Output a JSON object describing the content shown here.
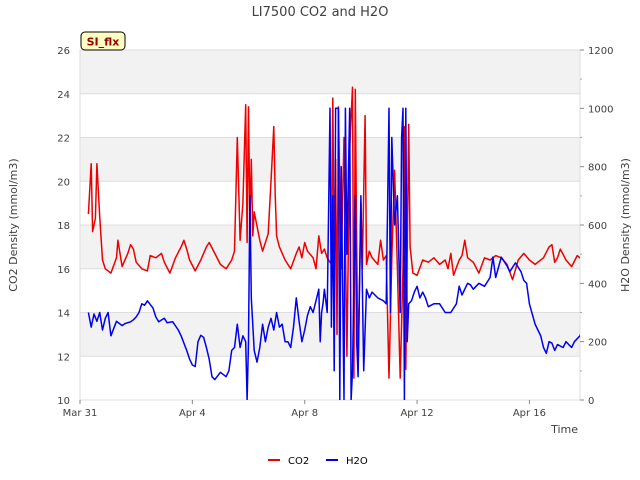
{
  "chart_data": {
    "type": "line",
    "title": "LI7500 CO2 and H2O",
    "xlabel": "Time",
    "ylabel_left": "CO2 Density (mmol/m3)",
    "ylabel_right": "H2O Density (mmol/m3)",
    "xlim": [
      0,
      17.8
    ],
    "ylim_left": [
      10,
      26
    ],
    "ylim_right": [
      0,
      1200
    ],
    "x_unit": "days since Mar 31",
    "x_ticks": [
      {
        "value": 0,
        "label": "Mar 31"
      },
      {
        "value": 4,
        "label": "Apr 4"
      },
      {
        "value": 8,
        "label": "Apr 8"
      },
      {
        "value": 12,
        "label": "Apr 12"
      },
      {
        "value": 16,
        "label": "Apr 16"
      }
    ],
    "y_ticks_left": [
      10,
      12,
      14,
      16,
      18,
      20,
      22,
      24,
      26
    ],
    "y_ticks_right": [
      0,
      200,
      400,
      600,
      800,
      1000,
      1200
    ],
    "grid": "horizontal bands",
    "legend_position": "bottom-center",
    "annotation": "SI_flx",
    "series": [
      {
        "name": "CO2",
        "color": "#ee0000",
        "axis": "left",
        "points": [
          [
            0.3,
            18.5
          ],
          [
            0.4,
            20.8
          ],
          [
            0.45,
            17.7
          ],
          [
            0.55,
            18.3
          ],
          [
            0.6,
            20.8
          ],
          [
            0.7,
            18.4
          ],
          [
            0.8,
            16.4
          ],
          [
            0.9,
            16.0
          ],
          [
            1.1,
            15.8
          ],
          [
            1.3,
            16.5
          ],
          [
            1.35,
            17.3
          ],
          [
            1.5,
            16.1
          ],
          [
            1.7,
            16.7
          ],
          [
            1.8,
            17.1
          ],
          [
            1.9,
            16.9
          ],
          [
            2.0,
            16.3
          ],
          [
            2.2,
            16.0
          ],
          [
            2.4,
            15.9
          ],
          [
            2.5,
            16.6
          ],
          [
            2.7,
            16.5
          ],
          [
            2.9,
            16.7
          ],
          [
            3.0,
            16.3
          ],
          [
            3.2,
            15.8
          ],
          [
            3.4,
            16.5
          ],
          [
            3.6,
            17.0
          ],
          [
            3.7,
            17.3
          ],
          [
            3.8,
            16.9
          ],
          [
            3.9,
            16.4
          ],
          [
            4.1,
            15.9
          ],
          [
            4.3,
            16.4
          ],
          [
            4.5,
            17.0
          ],
          [
            4.6,
            17.2
          ],
          [
            4.8,
            16.7
          ],
          [
            5.0,
            16.2
          ],
          [
            5.2,
            16.0
          ],
          [
            5.4,
            16.4
          ],
          [
            5.5,
            16.8
          ],
          [
            5.6,
            22.0
          ],
          [
            5.7,
            17.3
          ],
          [
            5.8,
            19.0
          ],
          [
            5.9,
            23.5
          ],
          [
            5.95,
            17.2
          ],
          [
            6.0,
            23.4
          ],
          [
            6.05,
            18.0
          ],
          [
            6.1,
            21.0
          ],
          [
            6.15,
            17.5
          ],
          [
            6.2,
            18.6
          ],
          [
            6.4,
            17.3
          ],
          [
            6.5,
            16.8
          ],
          [
            6.7,
            17.6
          ],
          [
            6.8,
            20.0
          ],
          [
            6.9,
            22.5
          ],
          [
            6.95,
            19.4
          ],
          [
            7.0,
            17.5
          ],
          [
            7.1,
            17.0
          ],
          [
            7.3,
            16.4
          ],
          [
            7.5,
            16.0
          ],
          [
            7.7,
            16.7
          ],
          [
            7.8,
            17.0
          ],
          [
            7.9,
            16.5
          ],
          [
            8.0,
            17.2
          ],
          [
            8.1,
            16.8
          ],
          [
            8.3,
            16.5
          ],
          [
            8.4,
            16.0
          ],
          [
            8.5,
            17.5
          ],
          [
            8.6,
            16.7
          ],
          [
            8.7,
            16.9
          ],
          [
            8.8,
            16.5
          ],
          [
            8.95,
            16.2
          ],
          [
            9.0,
            23.8
          ],
          [
            9.05,
            16.0
          ],
          [
            9.1,
            21.0
          ],
          [
            9.15,
            13.0
          ],
          [
            9.2,
            23.4
          ],
          [
            9.3,
            16.0
          ],
          [
            9.4,
            22.0
          ],
          [
            9.5,
            12.0
          ],
          [
            9.6,
            21.5
          ],
          [
            9.7,
            24.3
          ],
          [
            9.75,
            11.0
          ],
          [
            9.8,
            24.2
          ],
          [
            9.85,
            17.0
          ],
          [
            9.9,
            11.5
          ],
          [
            10.0,
            19.0
          ],
          [
            10.05,
            16.0
          ],
          [
            10.15,
            23.0
          ],
          [
            10.2,
            16.2
          ],
          [
            10.3,
            16.8
          ],
          [
            10.4,
            16.5
          ],
          [
            10.6,
            16.2
          ],
          [
            10.7,
            17.3
          ],
          [
            10.8,
            16.4
          ],
          [
            10.9,
            16.6
          ],
          [
            11.0,
            11.0
          ],
          [
            11.1,
            16.5
          ],
          [
            11.2,
            20.5
          ],
          [
            11.3,
            16.0
          ],
          [
            11.4,
            11.0
          ],
          [
            11.5,
            16.0
          ],
          [
            11.55,
            22.5
          ],
          [
            11.6,
            11.4
          ],
          [
            11.7,
            22.6
          ],
          [
            11.75,
            17.0
          ],
          [
            11.85,
            15.8
          ],
          [
            12.0,
            15.7
          ],
          [
            12.2,
            16.4
          ],
          [
            12.4,
            16.3
          ],
          [
            12.6,
            16.5
          ],
          [
            12.8,
            16.2
          ],
          [
            13.0,
            16.4
          ],
          [
            13.1,
            16.0
          ],
          [
            13.2,
            16.7
          ],
          [
            13.3,
            15.7
          ],
          [
            13.5,
            16.4
          ],
          [
            13.6,
            16.6
          ],
          [
            13.7,
            17.3
          ],
          [
            13.8,
            16.5
          ],
          [
            14.0,
            16.3
          ],
          [
            14.2,
            15.8
          ],
          [
            14.4,
            16.5
          ],
          [
            14.6,
            16.4
          ],
          [
            14.8,
            16.6
          ],
          [
            15.0,
            16.5
          ],
          [
            15.2,
            16.2
          ],
          [
            15.4,
            15.5
          ],
          [
            15.6,
            16.4
          ],
          [
            15.8,
            16.7
          ],
          [
            16.0,
            16.4
          ],
          [
            16.2,
            16.2
          ],
          [
            16.5,
            16.5
          ],
          [
            16.7,
            17.0
          ],
          [
            16.8,
            17.1
          ],
          [
            16.9,
            16.3
          ],
          [
            17.0,
            16.5
          ],
          [
            17.1,
            16.9
          ],
          [
            17.3,
            16.4
          ],
          [
            17.5,
            16.1
          ],
          [
            17.7,
            16.6
          ],
          [
            17.9,
            16.4
          ],
          [
            18.1,
            16.5
          ],
          [
            18.3,
            16.2
          ],
          [
            18.5,
            15.9
          ],
          [
            18.6,
            16.0
          ],
          [
            18.8,
            16.5
          ],
          [
            18.9,
            16.6
          ]
        ]
      },
      {
        "name": "H2O",
        "color": "#0000ee",
        "axis": "right",
        "points": [
          [
            0.3,
            300
          ],
          [
            0.4,
            250
          ],
          [
            0.5,
            295
          ],
          [
            0.6,
            270
          ],
          [
            0.7,
            300
          ],
          [
            0.8,
            240
          ],
          [
            0.9,
            280
          ],
          [
            1.0,
            300
          ],
          [
            1.1,
            220
          ],
          [
            1.3,
            270
          ],
          [
            1.5,
            255
          ],
          [
            1.6,
            262
          ],
          [
            1.8,
            268
          ],
          [
            1.9,
            275
          ],
          [
            2.0,
            285
          ],
          [
            2.1,
            300
          ],
          [
            2.2,
            330
          ],
          [
            2.3,
            325
          ],
          [
            2.4,
            340
          ],
          [
            2.6,
            315
          ],
          [
            2.7,
            285
          ],
          [
            2.8,
            268
          ],
          [
            3.0,
            280
          ],
          [
            3.1,
            265
          ],
          [
            3.3,
            268
          ],
          [
            3.5,
            240
          ],
          [
            3.6,
            220
          ],
          [
            3.8,
            170
          ],
          [
            3.9,
            140
          ],
          [
            4.0,
            120
          ],
          [
            4.1,
            115
          ],
          [
            4.2,
            200
          ],
          [
            4.3,
            222
          ],
          [
            4.4,
            215
          ],
          [
            4.5,
            180
          ],
          [
            4.6,
            140
          ],
          [
            4.7,
            80
          ],
          [
            4.8,
            70
          ],
          [
            5.0,
            95
          ],
          [
            5.2,
            80
          ],
          [
            5.3,
            100
          ],
          [
            5.4,
            170
          ],
          [
            5.5,
            180
          ],
          [
            5.6,
            260
          ],
          [
            5.7,
            180
          ],
          [
            5.8,
            220
          ],
          [
            5.9,
            200
          ],
          [
            5.95,
            0
          ],
          [
            6.0,
            200
          ],
          [
            6.05,
            700
          ],
          [
            6.1,
            350
          ],
          [
            6.2,
            170
          ],
          [
            6.3,
            130
          ],
          [
            6.4,
            180
          ],
          [
            6.5,
            260
          ],
          [
            6.6,
            200
          ],
          [
            6.7,
            250
          ],
          [
            6.8,
            280
          ],
          [
            6.9,
            240
          ],
          [
            7.0,
            300
          ],
          [
            7.1,
            250
          ],
          [
            7.2,
            260
          ],
          [
            7.3,
            200
          ],
          [
            7.4,
            200
          ],
          [
            7.5,
            180
          ],
          [
            7.6,
            250
          ],
          [
            7.7,
            350
          ],
          [
            7.8,
            270
          ],
          [
            7.9,
            200
          ],
          [
            8.0,
            240
          ],
          [
            8.1,
            290
          ],
          [
            8.2,
            320
          ],
          [
            8.3,
            300
          ],
          [
            8.4,
            340
          ],
          [
            8.5,
            380
          ],
          [
            8.55,
            200
          ],
          [
            8.6,
            300
          ],
          [
            8.65,
            330
          ],
          [
            8.7,
            380
          ],
          [
            8.8,
            300
          ],
          [
            8.9,
            1000
          ],
          [
            8.95,
            250
          ],
          [
            9.0,
            700
          ],
          [
            9.05,
            100
          ],
          [
            9.1,
            1000
          ],
          [
            9.2,
            1000
          ],
          [
            9.25,
            0
          ],
          [
            9.3,
            800
          ],
          [
            9.4,
            0
          ],
          [
            9.45,
            1000
          ],
          [
            9.5,
            500
          ],
          [
            9.6,
            1000
          ],
          [
            9.65,
            0
          ],
          [
            9.7,
            100
          ],
          [
            9.8,
            700
          ],
          [
            9.85,
            200
          ],
          [
            9.9,
            80
          ],
          [
            10.0,
            700
          ],
          [
            10.1,
            100
          ],
          [
            10.2,
            380
          ],
          [
            10.3,
            350
          ],
          [
            10.4,
            370
          ],
          [
            10.6,
            350
          ],
          [
            10.8,
            340
          ],
          [
            10.9,
            330
          ],
          [
            11.0,
            1000
          ],
          [
            11.05,
            300
          ],
          [
            11.1,
            900
          ],
          [
            11.2,
            600
          ],
          [
            11.3,
            700
          ],
          [
            11.4,
            300
          ],
          [
            11.45,
            900
          ],
          [
            11.5,
            1000
          ],
          [
            11.55,
            0
          ],
          [
            11.6,
            1000
          ],
          [
            11.65,
            200
          ],
          [
            11.7,
            330
          ],
          [
            11.8,
            340
          ],
          [
            11.9,
            370
          ],
          [
            12.0,
            390
          ],
          [
            12.1,
            350
          ],
          [
            12.2,
            370
          ],
          [
            12.3,
            350
          ],
          [
            12.4,
            320
          ],
          [
            12.6,
            330
          ],
          [
            12.8,
            330
          ],
          [
            13.0,
            300
          ],
          [
            13.2,
            300
          ],
          [
            13.4,
            330
          ],
          [
            13.5,
            390
          ],
          [
            13.6,
            360
          ],
          [
            13.8,
            400
          ],
          [
            13.9,
            395
          ],
          [
            14.0,
            380
          ],
          [
            14.2,
            400
          ],
          [
            14.4,
            390
          ],
          [
            14.6,
            420
          ],
          [
            14.7,
            490
          ],
          [
            14.8,
            420
          ],
          [
            15.0,
            490
          ],
          [
            15.2,
            460
          ],
          [
            15.3,
            440
          ],
          [
            15.5,
            470
          ],
          [
            15.7,
            440
          ],
          [
            15.8,
            410
          ],
          [
            15.9,
            400
          ],
          [
            16.0,
            330
          ],
          [
            16.2,
            260
          ],
          [
            16.3,
            240
          ],
          [
            16.4,
            220
          ],
          [
            16.5,
            180
          ],
          [
            16.6,
            160
          ],
          [
            16.7,
            200
          ],
          [
            16.8,
            195
          ],
          [
            16.9,
            170
          ],
          [
            17.0,
            190
          ],
          [
            17.2,
            180
          ],
          [
            17.3,
            200
          ],
          [
            17.5,
            180
          ],
          [
            17.6,
            200
          ],
          [
            17.8,
            220
          ],
          [
            17.9,
            250
          ],
          [
            18.0,
            260
          ],
          [
            18.2,
            270
          ],
          [
            18.3,
            300
          ],
          [
            18.4,
            290
          ],
          [
            18.5,
            310
          ],
          [
            18.6,
            280
          ],
          [
            18.7,
            300
          ],
          [
            18.8,
            270
          ],
          [
            18.9,
            290
          ]
        ]
      }
    ]
  }
}
